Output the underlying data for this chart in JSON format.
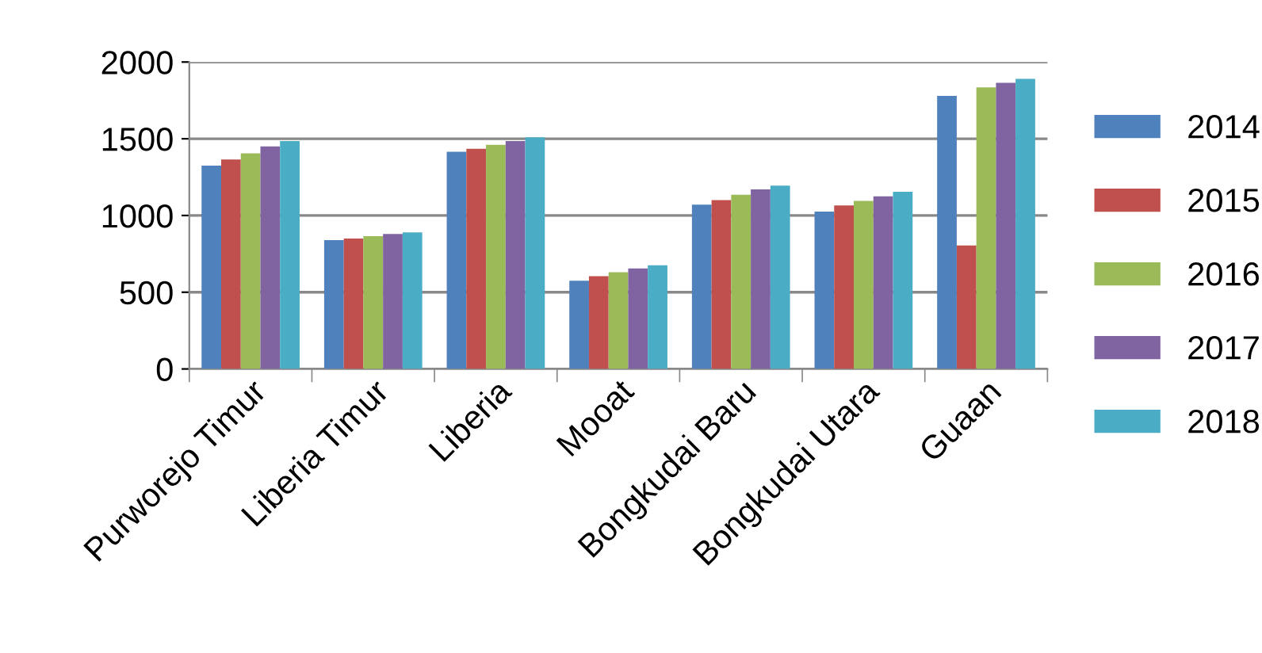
{
  "chart_data": {
    "type": "bar",
    "categories": [
      "Purworejo Timur",
      "Liberia Timur",
      "Liberia",
      "Mooat",
      "Bongkudai Baru",
      "Bongkudai Utara",
      "Guaan"
    ],
    "series": [
      {
        "name": "2014",
        "color": "#4f81bd",
        "values": [
          1325,
          840,
          1415,
          575,
          1070,
          1025,
          1780
        ]
      },
      {
        "name": "2015",
        "color": "#c0504d",
        "values": [
          1365,
          850,
          1435,
          605,
          1100,
          1065,
          805
        ]
      },
      {
        "name": "2016",
        "color": "#9bbb59",
        "values": [
          1405,
          865,
          1460,
          630,
          1135,
          1095,
          1835
        ]
      },
      {
        "name": "2017",
        "color": "#8064a2",
        "values": [
          1450,
          880,
          1485,
          655,
          1170,
          1125,
          1865
        ]
      },
      {
        "name": "2018",
        "color": "#4bacc6",
        "values": [
          1485,
          890,
          1510,
          675,
          1195,
          1155,
          1890
        ]
      }
    ],
    "ylim": [
      0,
      2000
    ],
    "yticks": [
      0,
      500,
      1000,
      1500,
      2000
    ],
    "grid": "y",
    "legend": "right"
  }
}
